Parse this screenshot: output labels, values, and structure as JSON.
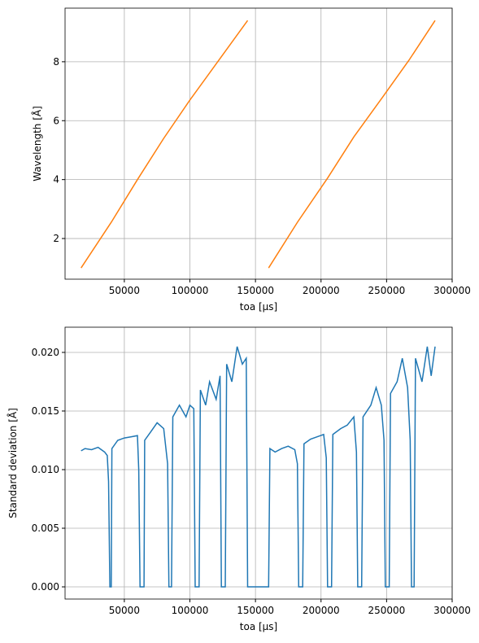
{
  "chart_data": [
    {
      "type": "line",
      "xlabel": "toa [µs]",
      "ylabel": "Wavelength [Å]",
      "x": [
        17000,
        40000,
        60000,
        80000,
        100000,
        122000,
        144000,
        null,
        160000,
        182000,
        205000,
        225000,
        247000,
        267000,
        287000
      ],
      "series": [
        {
          "color": "#ff7f0e",
          "values": [
            1.0,
            2.55,
            4.0,
            5.4,
            6.7,
            8.05,
            9.4,
            null,
            1.0,
            2.55,
            4.05,
            5.45,
            6.8,
            8.05,
            9.4
          ]
        }
      ],
      "xlim": [
        4800,
        300000
      ],
      "xticks": [
        50000,
        100000,
        150000,
        200000,
        250000,
        300000
      ],
      "ylim": [
        0.62,
        9.82
      ],
      "yticks": [
        2,
        4,
        6,
        8
      ],
      "grid": true
    },
    {
      "type": "line",
      "xlabel": "toa [µs]",
      "ylabel": "Standard deviation [Å]",
      "x": [
        17000,
        20000,
        25000,
        30000,
        35000,
        37000,
        38000,
        39000,
        40000,
        40500,
        45000,
        50000,
        55000,
        60000,
        61000,
        62000,
        65000,
        65500,
        70000,
        75000,
        80000,
        83000,
        84000,
        86000,
        87000,
        92000,
        97000,
        100000,
        103000,
        104000,
        107000,
        108000,
        112000,
        115000,
        120000,
        123000,
        124000,
        127000,
        128000,
        132000,
        136000,
        140000,
        143000,
        144000,
        150000,
        155000,
        160000,
        161000,
        165000,
        170000,
        175000,
        180000,
        182000,
        183000,
        186000,
        187000,
        192000,
        197000,
        202000,
        204000,
        205000,
        208000,
        209000,
        215000,
        220000,
        225000,
        227000,
        228000,
        231000,
        232000,
        238000,
        242000,
        246000,
        248000,
        249000,
        252000,
        253000,
        258000,
        262000,
        266000,
        268000,
        269000,
        271000,
        272000,
        277000,
        281000,
        284000,
        287000
      ],
      "series": [
        {
          "color": "#1f77b4",
          "values": [
            0.0116,
            0.0118,
            0.0117,
            0.0119,
            0.0115,
            0.0112,
            0.009,
            0.0,
            0.0,
            0.0118,
            0.0125,
            0.0127,
            0.0128,
            0.0129,
            0.01,
            0.0,
            0.0,
            0.0125,
            0.0132,
            0.014,
            0.0135,
            0.0105,
            0.0,
            0.0,
            0.0145,
            0.0155,
            0.0145,
            0.0155,
            0.0152,
            0.0,
            0.0,
            0.0168,
            0.0155,
            0.0175,
            0.016,
            0.018,
            0.0,
            0.0,
            0.019,
            0.0175,
            0.0205,
            0.019,
            0.0195,
            0.0,
            0.0,
            0.0,
            0.0,
            0.0118,
            0.0115,
            0.0118,
            0.012,
            0.0117,
            0.0105,
            0.0,
            0.0,
            0.0122,
            0.0126,
            0.0128,
            0.013,
            0.011,
            0.0,
            0.0,
            0.013,
            0.0135,
            0.0138,
            0.0145,
            0.0115,
            0.0,
            0.0,
            0.0145,
            0.0155,
            0.017,
            0.0155,
            0.0125,
            0.0,
            0.0,
            0.0165,
            0.0175,
            0.0195,
            0.017,
            0.0125,
            0.0,
            0.0,
            0.0195,
            0.0175,
            0.0205,
            0.018,
            0.0205
          ]
        }
      ],
      "xlim": [
        4800,
        300000
      ],
      "xticks": [
        50000,
        100000,
        150000,
        200000,
        250000,
        300000
      ],
      "ylim": [
        -0.00104,
        0.02215
      ],
      "yticks": [
        {
          "value": 0,
          "label": "0.000"
        },
        {
          "value": 0.005,
          "label": "0.005"
        },
        {
          "value": 0.01,
          "label": "0.010"
        },
        {
          "value": 0.015,
          "label": "0.015"
        },
        {
          "value": 0.02,
          "label": "0.020"
        }
      ],
      "grid": true
    }
  ]
}
